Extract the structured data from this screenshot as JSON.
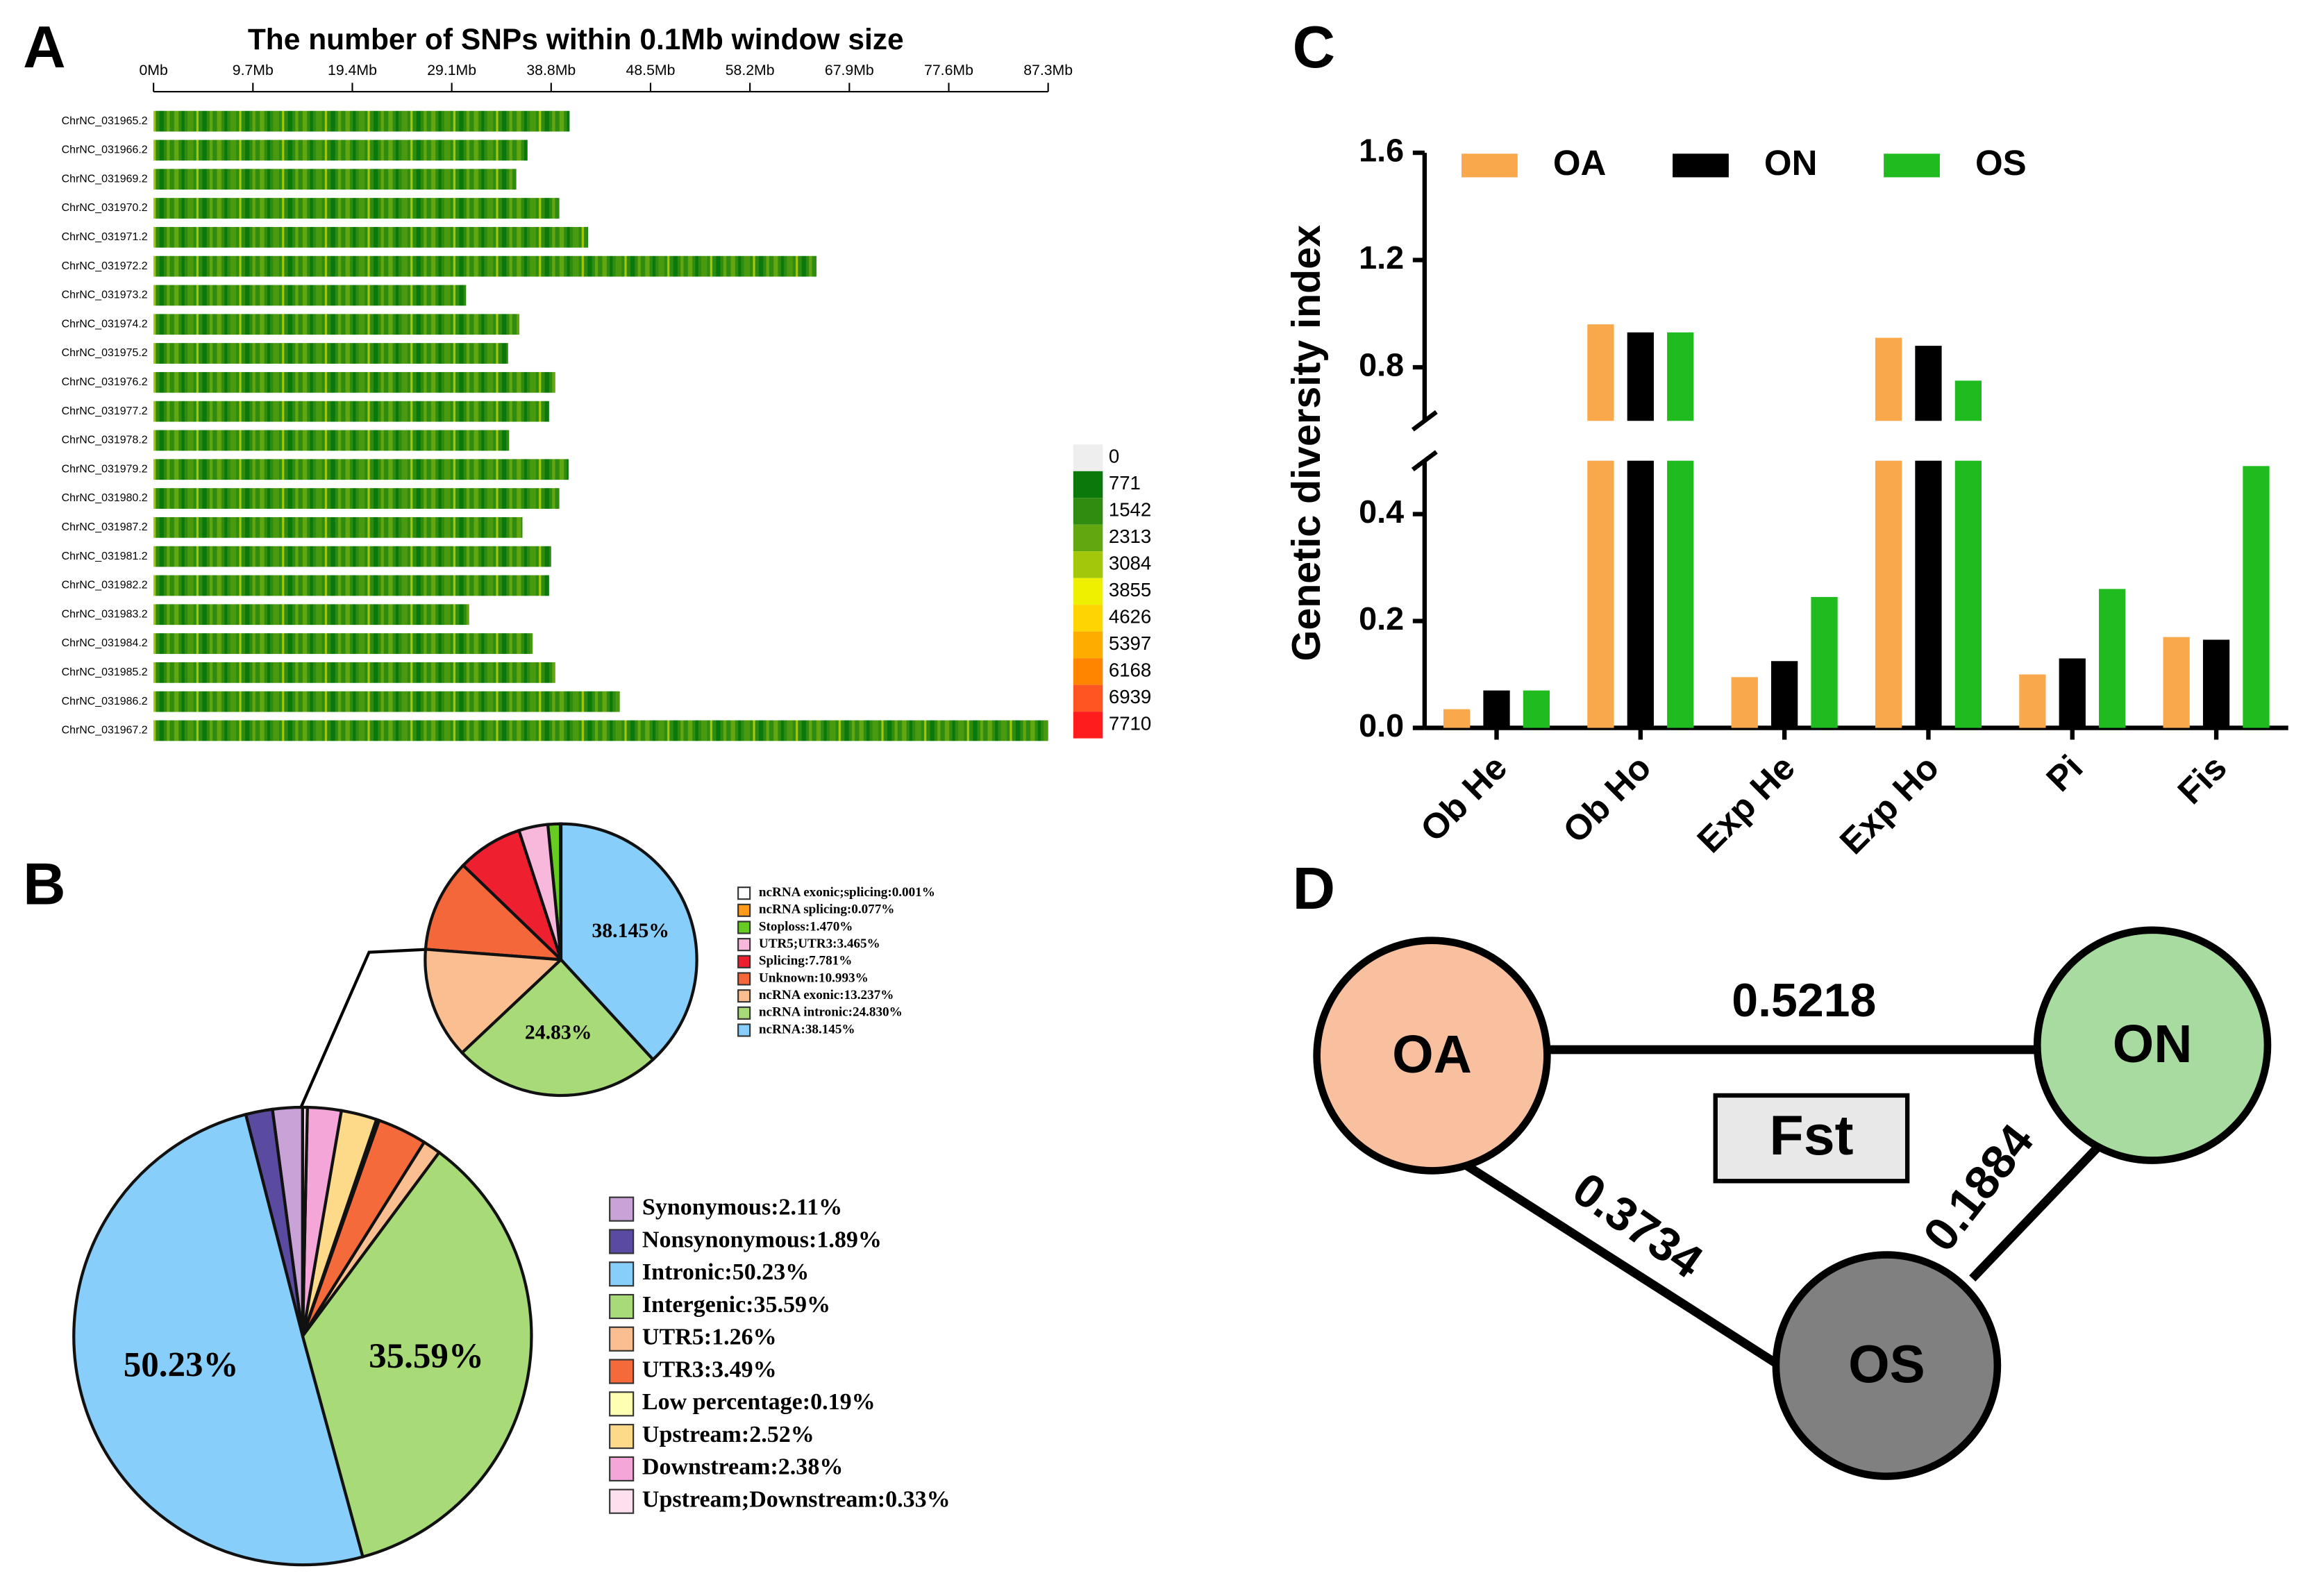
{
  "panels": [
    "A",
    "B",
    "C",
    "D"
  ],
  "chart_data": [
    {
      "type": "density",
      "title": "The number of SNPs within 0.1Mb window size",
      "categories": [
        "ChrNC_031965.2",
        "ChrNC_031966.2",
        "ChrNC_031969.2",
        "ChrNC_031970.2",
        "ChrNC_031971.2",
        "ChrNC_031972.2",
        "ChrNC_031973.2",
        "ChrNC_031974.2",
        "ChrNC_031975.2",
        "ChrNC_031976.2",
        "ChrNC_031977.2",
        "ChrNC_031978.2",
        "ChrNC_031979.2",
        "ChrNC_031980.2",
        "ChrNC_031987.2",
        "ChrNC_031981.2",
        "ChrNC_031982.2",
        "ChrNC_031983.2",
        "ChrNC_031984.2",
        "ChrNC_031985.2",
        "ChrNC_031986.2",
        "ChrNC_031967.2"
      ],
      "values": [
        40.6,
        36.5,
        35.4,
        39.6,
        42.4,
        64.7,
        30.5,
        35.7,
        34.6,
        39.2,
        38.6,
        34.7,
        40.5,
        39.6,
        36.0,
        38.8,
        38.6,
        30.8,
        37.0,
        39.2,
        45.5,
        87.3
      ],
      "xlim": [
        0,
        87.3
      ],
      "xticks": [
        {
          "value": 0,
          "label": "0Mb"
        },
        {
          "value": 9.7,
          "label": "9.7Mb"
        },
        {
          "value": 19.4,
          "label": "19.4Mb"
        },
        {
          "value": 29.1,
          "label": "29.1Mb"
        },
        {
          "value": 38.8,
          "label": "38.8Mb"
        },
        {
          "value": 48.5,
          "label": "48.5Mb"
        },
        {
          "value": 58.2,
          "label": "58.2Mb"
        },
        {
          "value": 67.9,
          "label": "67.9Mb"
        },
        {
          "value": 77.6,
          "label": "77.6Mb"
        },
        {
          "value": 87.3,
          "label": "87.3Mb"
        }
      ],
      "colorbar": {
        "ticks": [
          0,
          771,
          1542,
          2313,
          3084,
          3855,
          4626,
          5397,
          6168,
          6939,
          7710
        ],
        "colors": [
          "#eeeeee",
          "#0b780b",
          "#2f8c10",
          "#62a70f",
          "#a3c70b",
          "#eef000",
          "#ffd400",
          "#ffac00",
          "#ff8400",
          "#ff5522",
          "#ff1c1c"
        ]
      }
    },
    {
      "type": "pie",
      "categories": [
        "Synonymous:2.11%",
        "Nonsynonymous:1.89%",
        "Intronic:50.23%",
        "Intergenic:35.59%",
        "UTR5:1.26%",
        "UTR3:3.49%",
        "Low percentage:0.19%",
        "Upstream:2.52%",
        "Downstream:2.38%",
        "Upstream;Downstream:0.33%"
      ],
      "values": [
        2.11,
        1.89,
        50.23,
        35.59,
        1.26,
        3.49,
        0.19,
        2.52,
        2.38,
        0.33
      ],
      "value_labels": [
        null,
        null,
        "50.23%",
        "35.59%",
        null,
        null,
        null,
        null,
        null,
        null
      ],
      "colors": [
        "#c9a2d8",
        "#5a4aa0",
        "#87cefa",
        "#a8da78",
        "#fbbe90",
        "#f46a3a",
        "#ffffb3",
        "#fdd98a",
        "#f5a6d8",
        "#fde0ee"
      ]
    },
    {
      "type": "pie",
      "categories": [
        "ncRNA exonic;splicing:0.001%",
        "ncRNA splicing:0.077%",
        "Stoploss:1.470%",
        "UTR5;UTR3:3.465%",
        "Splicing:7.781%",
        "Unknown:10.993%",
        "ncRNA exonic:13.237%",
        "ncRNA intronic:24.830%",
        "ncRNA:38.145%"
      ],
      "values": [
        0.001,
        0.077,
        1.47,
        3.465,
        7.781,
        10.993,
        13.237,
        24.83,
        38.145
      ],
      "value_labels": [
        null,
        null,
        null,
        null,
        null,
        null,
        null,
        "24.83%",
        "38.145%"
      ],
      "colors": [
        "#ffffff",
        "#ff9a1a",
        "#66cc22",
        "#f8b8dc",
        "#ee1f2e",
        "#f4673a",
        "#fbbe90",
        "#a8da78",
        "#87cefa"
      ]
    },
    {
      "type": "bar",
      "y_label": "Genetic diversity index",
      "categories": [
        "Ob He",
        "Ob Ho",
        "Exp He",
        "Exp Ho",
        "Pi",
        "Fis"
      ],
      "series": [
        {
          "name": "OA",
          "color": "#f9a94b",
          "values": [
            0.035,
            0.96,
            0.095,
            0.91,
            0.1,
            0.17
          ]
        },
        {
          "name": "ON",
          "color": "#000000",
          "values": [
            0.07,
            0.93,
            0.125,
            0.88,
            0.13,
            0.165
          ]
        },
        {
          "name": "OS",
          "color": "#1fbb1f",
          "values": [
            0.07,
            0.93,
            0.245,
            0.75,
            0.26,
            0.49
          ]
        }
      ],
      "ylim": [
        0,
        1.6
      ],
      "axis_break": [
        0.5,
        0.6
      ],
      "yticks": [
        {
          "value": 0,
          "label": "0.0"
        },
        0.2,
        0.4,
        0.8,
        1.2,
        1.6
      ]
    }
  ],
  "diagram": {
    "nodes": [
      {
        "label": "OA",
        "color": "#f9c09f"
      },
      {
        "label": "ON",
        "color": "#a8dba0"
      },
      {
        "label": "OS",
        "color": "#808080"
      }
    ],
    "edges": [
      {
        "from": 0,
        "to": 1,
        "label": 0.5218
      },
      {
        "from": 0,
        "to": 2,
        "label": 0.3734
      },
      {
        "from": 1,
        "to": 2,
        "label": 0.1884
      }
    ],
    "box_label": "Fst"
  }
}
